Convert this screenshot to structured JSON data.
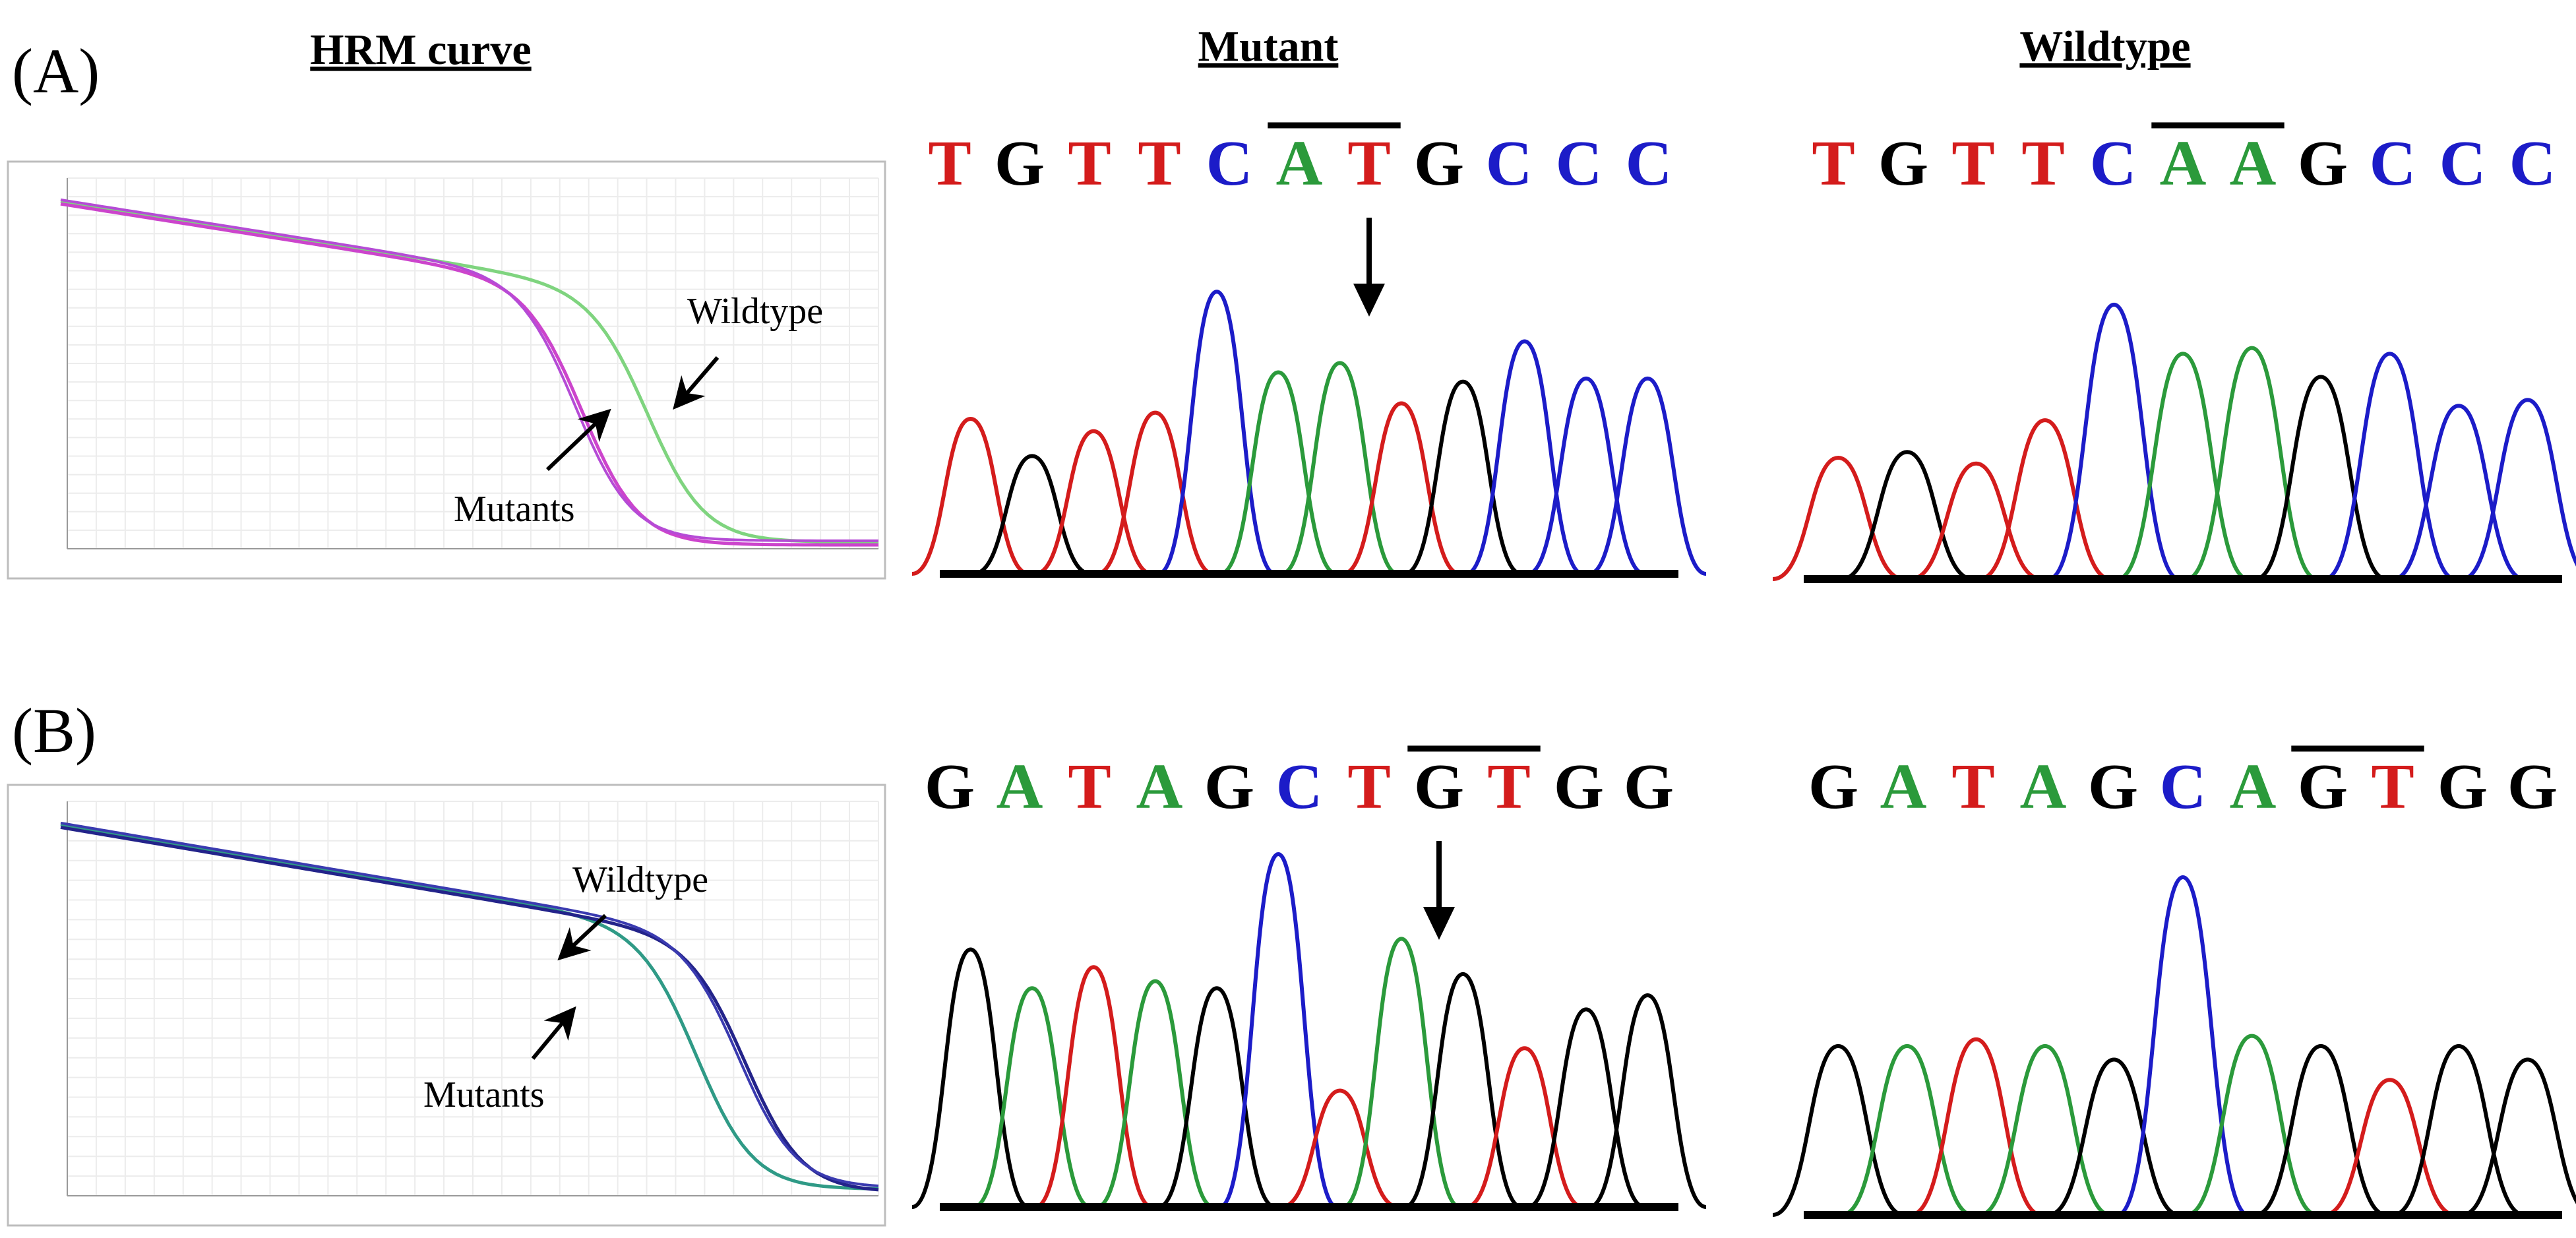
{
  "figure": {
    "headers": {
      "hrm": "HRM curve",
      "mutant": "Mutant",
      "wildtype": "Wildtype"
    },
    "colors": {
      "A": "#2b9a3b",
      "C": "#1c1cc8",
      "G": "#000000",
      "T": "#d41c1c"
    },
    "panels": [
      {
        "letter": "(A)",
        "hrm": {
          "wildtype_label": "Wildtype",
          "mutants_label": "Mutants",
          "wildtype_color": "#7fd47f",
          "mutant_color": "#cc44cc",
          "mutant_color2": "#b54bd6",
          "melt_wt": 0.72,
          "melt_mut": 0.64
        },
        "mutant": {
          "bases": [
            "T",
            "G",
            "T",
            "T",
            "C",
            "A",
            "T",
            "G",
            "C",
            "C",
            "C"
          ],
          "codon_start": 5,
          "arrow_index": 6,
          "peaks": [
            {
              "base": "T",
              "h": 0.5
            },
            {
              "base": "G",
              "h": 0.38
            },
            {
              "base": "T",
              "h": 0.46
            },
            {
              "base": "T",
              "h": 0.52
            },
            {
              "base": "C",
              "h": 0.91
            },
            {
              "base": "A",
              "h": 0.65
            },
            {
              "base": "A",
              "h": 0.68
            },
            {
              "base": "T",
              "h": 0.55
            },
            {
              "base": "G",
              "h": 0.62
            },
            {
              "base": "C",
              "h": 0.75
            },
            {
              "base": "C",
              "h": 0.63
            },
            {
              "base": "C",
              "h": 0.63
            }
          ]
        },
        "wildtype": {
          "bases": [
            "T",
            "G",
            "T",
            "T",
            "C",
            "A",
            "A",
            "G",
            "C",
            "C",
            "C"
          ],
          "codon_start": 5,
          "peaks": [
            {
              "base": "T",
              "h": 0.42
            },
            {
              "base": "G",
              "h": 0.44
            },
            {
              "base": "T",
              "h": 0.4
            },
            {
              "base": "T",
              "h": 0.55
            },
            {
              "base": "C",
              "h": 0.95
            },
            {
              "base": "A",
              "h": 0.78
            },
            {
              "base": "A",
              "h": 0.8
            },
            {
              "base": "G",
              "h": 0.7
            },
            {
              "base": "C",
              "h": 0.78
            },
            {
              "base": "C",
              "h": 0.6
            },
            {
              "base": "C",
              "h": 0.62
            }
          ]
        }
      },
      {
        "letter": "(B)",
        "hrm": {
          "wildtype_label": "Wildtype",
          "mutants_label": "Mutants",
          "wildtype_color": "#2f9a86",
          "mutant_color": "#23238a",
          "mutant_color2": "#3a3ab0",
          "melt_wt": 0.78,
          "melt_mut": 0.84
        },
        "mutant": {
          "bases": [
            "G",
            "A",
            "T",
            "A",
            "G",
            "C",
            "T",
            "G",
            "T",
            "G",
            "G"
          ],
          "codon_start": 7,
          "arrow_index": 7,
          "peaks": [
            {
              "base": "G",
              "h": 0.73
            },
            {
              "base": "A",
              "h": 0.62
            },
            {
              "base": "T",
              "h": 0.68
            },
            {
              "base": "A",
              "h": 0.64
            },
            {
              "base": "G",
              "h": 0.62
            },
            {
              "base": "C",
              "h": 1.0
            },
            {
              "base": "T",
              "h": 0.33
            },
            {
              "base": "A",
              "h": 0.76
            },
            {
              "base": "G",
              "h": 0.66
            },
            {
              "base": "T",
              "h": 0.45
            },
            {
              "base": "G",
              "h": 0.56
            },
            {
              "base": "G",
              "h": 0.6
            }
          ]
        },
        "wildtype": {
          "bases": [
            "G",
            "A",
            "T",
            "A",
            "G",
            "C",
            "A",
            "G",
            "T",
            "G",
            "G"
          ],
          "codon_start": 7,
          "peaks": [
            {
              "base": "G",
              "h": 0.5
            },
            {
              "base": "A",
              "h": 0.5
            },
            {
              "base": "T",
              "h": 0.52
            },
            {
              "base": "A",
              "h": 0.5
            },
            {
              "base": "G",
              "h": 0.46
            },
            {
              "base": "C",
              "h": 1.0
            },
            {
              "base": "A",
              "h": 0.53
            },
            {
              "base": "G",
              "h": 0.5
            },
            {
              "base": "T",
              "h": 0.4
            },
            {
              "base": "G",
              "h": 0.5
            },
            {
              "base": "G",
              "h": 0.46
            }
          ]
        }
      }
    ]
  }
}
